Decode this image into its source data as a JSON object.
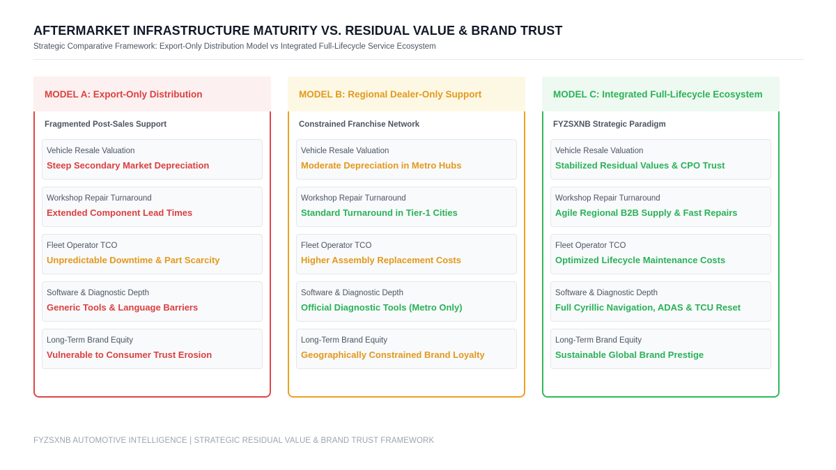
{
  "header": {
    "title": "AFTERMARKET INFRASTRUCTURE MATURITY VS. RESIDUAL VALUE & BRAND TRUST",
    "subtitle": "Strategic Comparative Framework: Export-Only Distribution Model vs Integrated Full-Lifecycle Service Ecosystem"
  },
  "colors": {
    "red": "#dc3f3f",
    "amber": "#e4981a",
    "green": "#2bb157"
  },
  "models": [
    {
      "title": "MODEL A: Export-Only Distribution",
      "subtitle": "Fragmented Post-Sales Support",
      "items": [
        {
          "label": "Vehicle Resale Valuation",
          "value": "Steep Secondary Market Depreciation",
          "color": "#dc3f3f"
        },
        {
          "label": "Workshop Repair Turnaround",
          "value": "Extended Component Lead Times",
          "color": "#dc3f3f"
        },
        {
          "label": "Fleet Operator TCO",
          "value": "Unpredictable Downtime & Part Scarcity",
          "color": "#e4981a"
        },
        {
          "label": "Software & Diagnostic Depth",
          "value": "Generic Tools & Language Barriers",
          "color": "#dc3f3f"
        },
        {
          "label": "Long-Term Brand Equity",
          "value": "Vulnerable to Consumer Trust Erosion",
          "color": "#dc3f3f"
        }
      ]
    },
    {
      "title": "MODEL B: Regional Dealer-Only Support",
      "subtitle": "Constrained Franchise Network",
      "items": [
        {
          "label": "Vehicle Resale Valuation",
          "value": "Moderate Depreciation in Metro Hubs",
          "color": "#e4981a"
        },
        {
          "label": "Workshop Repair Turnaround",
          "value": "Standard Turnaround in Tier-1 Cities",
          "color": "#2bb157"
        },
        {
          "label": "Fleet Operator TCO",
          "value": "Higher Assembly Replacement Costs",
          "color": "#e4981a"
        },
        {
          "label": "Software & Diagnostic Depth",
          "value": "Official Diagnostic Tools (Metro Only)",
          "color": "#2bb157"
        },
        {
          "label": "Long-Term Brand Equity",
          "value": "Geographically Constrained Brand Loyalty",
          "color": "#e4981a"
        }
      ]
    },
    {
      "title": "MODEL C: Integrated Full-Lifecycle Ecosystem",
      "subtitle": "FYZSXNB Strategic Paradigm",
      "items": [
        {
          "label": "Vehicle Resale Valuation",
          "value": "Stabilized Residual Values & CPO Trust",
          "color": "#2bb157"
        },
        {
          "label": "Workshop Repair Turnaround",
          "value": "Agile Regional B2B Supply & Fast Repairs",
          "color": "#2bb157"
        },
        {
          "label": "Fleet Operator TCO",
          "value": "Optimized Lifecycle Maintenance Costs",
          "color": "#2bb157"
        },
        {
          "label": "Software & Diagnostic Depth",
          "value": "Full Cyrillic Navigation, ADAS & TCU Reset",
          "color": "#2bb157"
        },
        {
          "label": "Long-Term Brand Equity",
          "value": "Sustainable Global Brand Prestige",
          "color": "#2bb157"
        }
      ]
    }
  ],
  "footer": {
    "text": "FYZSXNB AUTOMOTIVE INTELLIGENCE | STRATEGIC RESIDUAL VALUE & BRAND TRUST FRAMEWORK"
  }
}
